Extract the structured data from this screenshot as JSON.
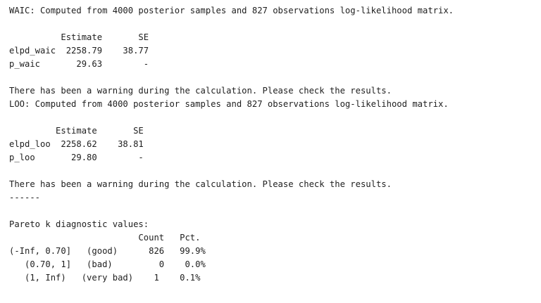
{
  "console": {
    "lines": [
      "WAIC: Computed from 4000 posterior samples and 827 observations log-likelihood matrix.",
      "",
      "          Estimate       SE",
      "elpd_waic  2258.79    38.77",
      "p_waic       29.63        -",
      "",
      "There has been a warning during the calculation. Please check the results.",
      "LOO: Computed from 4000 posterior samples and 827 observations log-likelihood matrix.",
      "",
      "         Estimate       SE",
      "elpd_loo  2258.62    38.81",
      "p_loo       29.80        -",
      "",
      "There has been a warning during the calculation. Please check the results.",
      "------",
      "",
      "Pareto k diagnostic values:",
      "                         Count   Pct.",
      "(-Inf, 0.70]   (good)      826   99.9%",
      "   (0.70, 1]   (bad)         0    0.0%",
      "   (1, Inf)   (very bad)    1    0.1%"
    ]
  }
}
